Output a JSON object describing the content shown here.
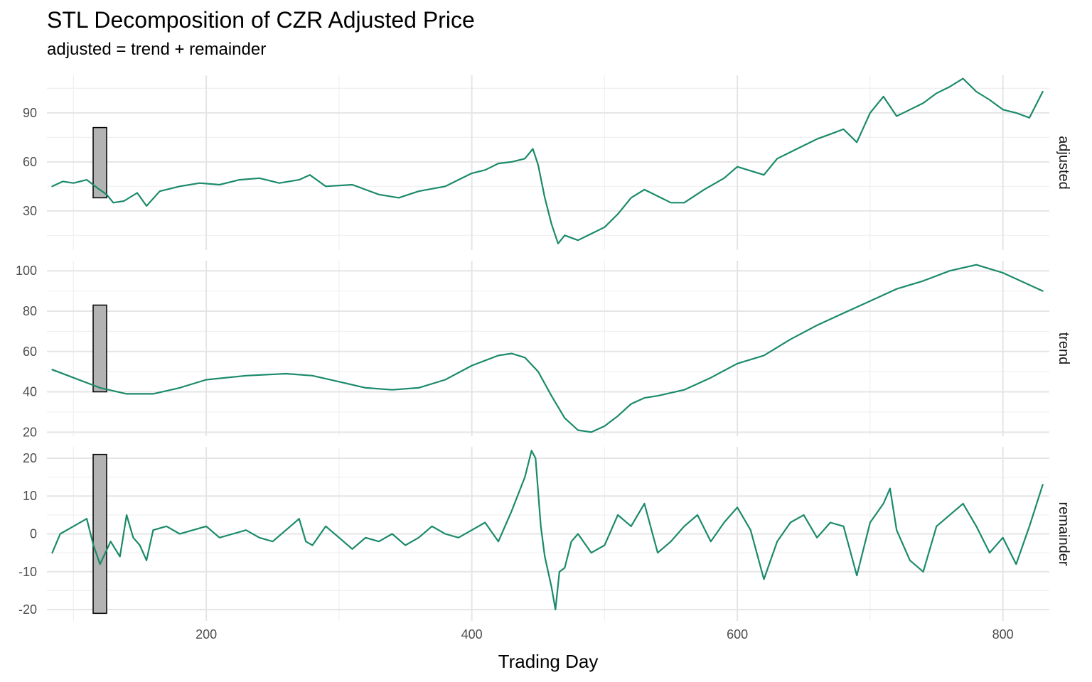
{
  "chart_data": {
    "type": "line",
    "title": "STL Decomposition of CZR Adjusted Price",
    "subtitle": "adjusted = trend + remainder",
    "xlabel": "Trading Day",
    "xlim": [
      80,
      835
    ],
    "x_ticks": [
      200,
      400,
      600,
      800
    ],
    "line_color": "#1b8a6b",
    "range_bar_color": "#b3b3b3",
    "grid": true,
    "panels": [
      {
        "name": "adjusted",
        "ylim": [
          6,
          113
        ],
        "y_ticks": [
          30,
          60,
          90
        ],
        "range_bar": [
          38,
          81
        ],
        "x": [
          84,
          92,
          100,
          110,
          118,
          125,
          130,
          138,
          148,
          155,
          165,
          180,
          195,
          210,
          225,
          240,
          255,
          270,
          278,
          290,
          310,
          330,
          345,
          360,
          380,
          400,
          410,
          420,
          430,
          440,
          446,
          450,
          455,
          460,
          465,
          470,
          480,
          490,
          500,
          510,
          520,
          530,
          540,
          550,
          560,
          575,
          590,
          600,
          620,
          630,
          640,
          650,
          660,
          670,
          680,
          690,
          700,
          710,
          720,
          730,
          740,
          750,
          760,
          770,
          780,
          790,
          800,
          810,
          820,
          830
        ],
        "y": [
          45,
          48,
          47,
          49,
          44,
          40,
          35,
          36,
          41,
          33,
          42,
          45,
          47,
          46,
          49,
          50,
          47,
          49,
          52,
          45,
          46,
          40,
          38,
          42,
          45,
          53,
          55,
          59,
          60,
          62,
          68,
          58,
          38,
          22,
          10,
          15,
          12,
          16,
          20,
          28,
          38,
          43,
          39,
          35,
          35,
          43,
          50,
          57,
          52,
          62,
          66,
          70,
          74,
          77,
          80,
          72,
          90,
          100,
          88,
          92,
          96,
          102,
          106,
          111,
          103,
          98,
          92,
          90,
          87,
          103
        ]
      },
      {
        "name": "trend",
        "ylim": [
          18,
          105
        ],
        "y_ticks": [
          20,
          40,
          60,
          80,
          100
        ],
        "range_bar": [
          40,
          83
        ],
        "x": [
          84,
          100,
          120,
          140,
          160,
          180,
          200,
          230,
          260,
          280,
          300,
          320,
          340,
          360,
          380,
          400,
          420,
          430,
          440,
          450,
          460,
          470,
          480,
          490,
          500,
          510,
          520,
          530,
          540,
          560,
          580,
          600,
          620,
          640,
          660,
          680,
          700,
          720,
          740,
          760,
          780,
          800,
          820,
          830
        ],
        "y": [
          51,
          47,
          42,
          39,
          39,
          42,
          46,
          48,
          49,
          48,
          45,
          42,
          41,
          42,
          46,
          53,
          58,
          59,
          57,
          50,
          38,
          27,
          21,
          20,
          23,
          28,
          34,
          37,
          38,
          41,
          47,
          54,
          58,
          66,
          73,
          79,
          85,
          91,
          95,
          100,
          103,
          99,
          93,
          90
        ]
      },
      {
        "name": "remainder",
        "ylim": [
          -23,
          23
        ],
        "y_ticks": [
          -20,
          -10,
          0,
          10,
          20
        ],
        "range_bar": [
          -21,
          21
        ],
        "x": [
          84,
          90,
          100,
          110,
          115,
          120,
          128,
          135,
          140,
          145,
          150,
          155,
          160,
          170,
          180,
          190,
          200,
          210,
          220,
          230,
          240,
          250,
          260,
          270,
          275,
          280,
          290,
          300,
          310,
          320,
          330,
          340,
          350,
          360,
          370,
          380,
          390,
          400,
          410,
          420,
          430,
          440,
          445,
          448,
          452,
          455,
          460,
          463,
          466,
          470,
          475,
          480,
          490,
          500,
          510,
          520,
          530,
          540,
          550,
          560,
          570,
          580,
          590,
          600,
          610,
          620,
          630,
          640,
          650,
          660,
          670,
          680,
          690,
          700,
          710,
          715,
          720,
          730,
          740,
          750,
          760,
          770,
          780,
          790,
          800,
          810,
          820,
          830
        ],
        "y": [
          -5,
          0,
          2,
          4,
          -3,
          -8,
          -2,
          -6,
          5,
          -1,
          -3,
          -7,
          1,
          2,
          0,
          1,
          2,
          -1,
          0,
          1,
          -1,
          -2,
          1,
          4,
          -2,
          -3,
          2,
          -1,
          -4,
          -1,
          -2,
          0,
          -3,
          -1,
          2,
          0,
          -1,
          1,
          3,
          -2,
          6,
          15,
          22,
          20,
          2,
          -6,
          -14,
          -20,
          -10,
          -9,
          -2,
          0,
          -5,
          -3,
          5,
          2,
          8,
          -5,
          -2,
          2,
          5,
          -2,
          3,
          7,
          1,
          -12,
          -2,
          3,
          5,
          -1,
          3,
          2,
          -11,
          3,
          8,
          12,
          1,
          -7,
          -10,
          2,
          5,
          8,
          2,
          -5,
          -1,
          -8,
          2,
          13
        ]
      }
    ]
  }
}
